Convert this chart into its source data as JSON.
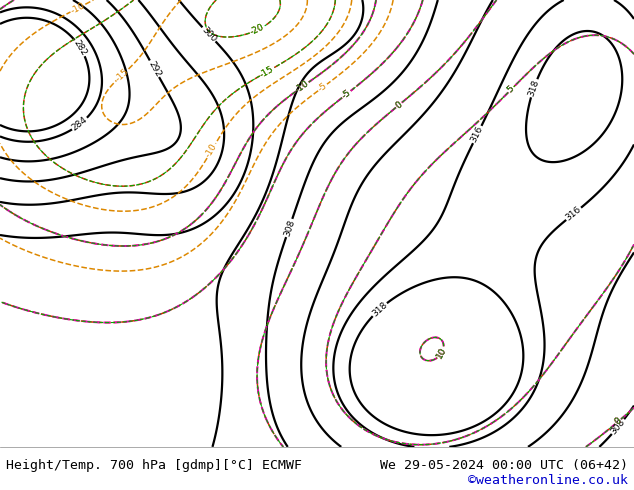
{
  "title_left": "Height/Temp. 700 hPa [gdmp][°C] ECMWF",
  "title_right": "We 29-05-2024 00:00 UTC (06+42)",
  "copyright": "©weatheronline.co.uk",
  "bg_color": "#ffffff",
  "land_color_green": "#c8e8a0",
  "land_color_gray": "#c8c8c8",
  "sea_color": "#e0e0e0",
  "border_color": "#888888",
  "contour_black_color": "#000000",
  "contour_red_color": "#dd2200",
  "contour_magenta_color": "#dd00aa",
  "contour_orange_color": "#dd8800",
  "contour_green_color": "#00aa00",
  "footer_font_size": 9.5,
  "footer_color": "#000000",
  "copyright_color": "#0000cc",
  "fig_width": 6.34,
  "fig_height": 4.9,
  "dpi": 100,
  "lon_min": -25,
  "lon_max": 45,
  "lat_min": 30,
  "lat_max": 72
}
